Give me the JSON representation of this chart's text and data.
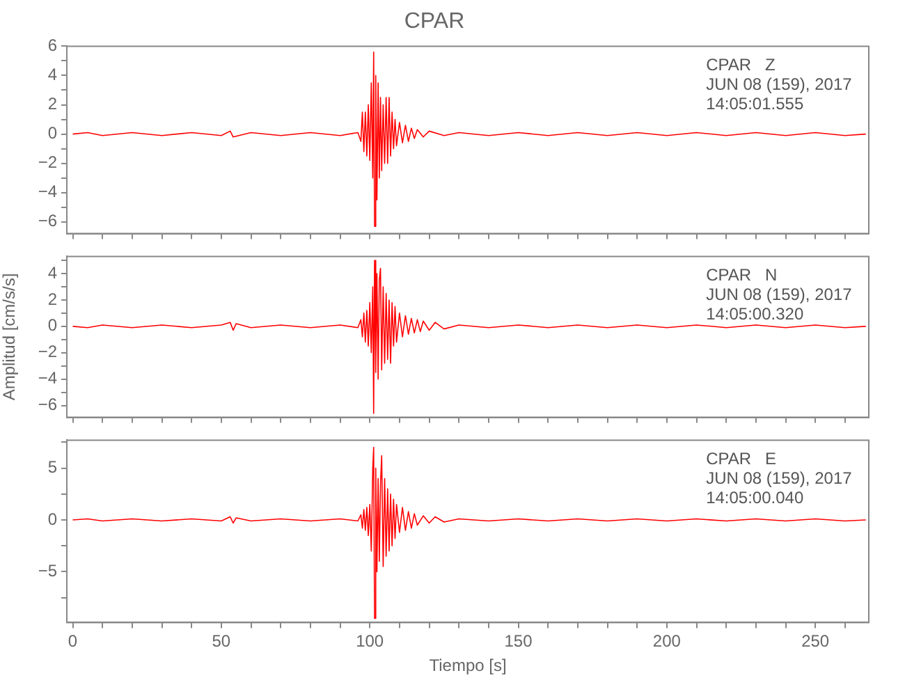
{
  "chart_data": [
    {
      "type": "line",
      "title": "CPAR",
      "annotations": [
        "CPAR   Z",
        "JUN 08 (159), 2017",
        "14:05:01.555"
      ],
      "tick_labels": "y",
      "grid": false,
      "xlim": [
        -2,
        268
      ],
      "ylim": [
        -6.8,
        6
      ],
      "xticks": [
        0,
        10,
        20,
        30,
        40,
        50,
        60,
        70,
        80,
        90,
        100,
        110,
        120,
        130,
        140,
        150,
        160,
        170,
        180,
        190,
        200,
        210,
        220,
        230,
        240,
        250,
        260
      ],
      "yticks": [
        {
          "value": -6,
          "label": "−6"
        },
        {
          "value": -5,
          "label": null
        },
        {
          "value": -4,
          "label": "−4"
        },
        {
          "value": -3,
          "label": null
        },
        {
          "value": -2,
          "label": "−2"
        },
        {
          "value": -1,
          "label": null
        },
        0,
        {
          "value": 1,
          "label": null
        },
        2,
        {
          "value": 3,
          "label": null
        },
        4,
        {
          "value": 5,
          "label": null
        },
        6
      ],
      "series": [
        {
          "color": "#ff0000",
          "x": [
            0,
            5,
            10,
            20,
            30,
            40,
            50,
            53,
            54,
            60,
            70,
            80,
            90,
            96,
            97,
            97.5,
            98,
            98.5,
            99,
            99.5,
            100,
            100.5,
            101,
            101.3,
            101.6,
            102,
            102.4,
            102.8,
            103.2,
            103.6,
            104,
            104.5,
            105,
            105.5,
            106,
            106.5,
            107,
            107.5,
            108,
            108.5,
            109,
            110,
            111,
            112,
            113,
            114,
            115,
            116,
            118,
            120,
            125,
            130,
            140,
            150,
            160,
            170,
            180,
            190,
            200,
            210,
            220,
            230,
            240,
            250,
            260,
            267
          ],
          "values": [
            0,
            0.1,
            -0.1,
            0.1,
            -0.1,
            0.1,
            -0.1,
            0.2,
            -0.2,
            0.1,
            -0.1,
            0.1,
            -0.1,
            0.1,
            -0.5,
            1.5,
            -1.2,
            1.5,
            -1.5,
            2,
            -1.8,
            3.5,
            -3,
            5.6,
            -6.3,
            4,
            -4.5,
            3.5,
            -3,
            2.5,
            -2.5,
            2,
            -2,
            2.5,
            -2,
            2.5,
            -1.5,
            1.5,
            -1,
            1,
            -0.8,
            0.8,
            -0.6,
            0.6,
            -0.5,
            0.4,
            -0.3,
            0.3,
            -0.2,
            0.2,
            -0.1,
            0.1,
            -0.1,
            0.1,
            -0.1,
            0.1,
            -0.1,
            0.1,
            -0.1,
            0.1,
            -0.1,
            0.1,
            -0.1,
            0.1,
            -0.1,
            0
          ]
        }
      ]
    },
    {
      "type": "line",
      "ylabel": "Amplitud [cm/s/s]",
      "annotations": [
        "CPAR   N",
        "JUN 08 (159), 2017",
        "14:05:00.320"
      ],
      "tick_labels": "y",
      "grid": false,
      "xlim": [
        -2,
        268
      ],
      "ylim": [
        -6.9,
        5.3
      ],
      "xticks": [
        0,
        10,
        20,
        30,
        40,
        50,
        60,
        70,
        80,
        90,
        100,
        110,
        120,
        130,
        140,
        150,
        160,
        170,
        180,
        190,
        200,
        210,
        220,
        230,
        240,
        250,
        260
      ],
      "yticks": [
        {
          "value": -6,
          "label": "−6"
        },
        {
          "value": -5,
          "label": null
        },
        {
          "value": -4,
          "label": "−4"
        },
        {
          "value": -3,
          "label": null
        },
        {
          "value": -2,
          "label": "−2"
        },
        {
          "value": -1,
          "label": null
        },
        0,
        {
          "value": 1,
          "label": null
        },
        2,
        {
          "value": 3,
          "label": null
        },
        4,
        {
          "value": 5,
          "label": null
        }
      ],
      "series": [
        {
          "color": "#ff0000",
          "x": [
            0,
            5,
            10,
            20,
            30,
            40,
            50,
            53,
            54,
            55,
            60,
            70,
            80,
            90,
            96,
            97,
            97.5,
            98,
            98.5,
            99,
            99.5,
            100,
            100.5,
            101,
            101.3,
            101.6,
            102,
            102.4,
            102.8,
            103.2,
            103.6,
            104,
            104.5,
            105,
            105.5,
            106,
            106.5,
            107,
            107.5,
            108,
            108.5,
            109,
            110,
            111,
            112,
            113,
            114,
            115,
            116,
            117,
            118,
            120,
            122,
            125,
            130,
            140,
            150,
            160,
            170,
            180,
            190,
            200,
            210,
            220,
            230,
            240,
            250,
            260,
            267
          ],
          "values": [
            0,
            -0.1,
            0.1,
            -0.1,
            0.1,
            -0.1,
            0.1,
            0.3,
            -0.3,
            0.2,
            -0.1,
            0.1,
            -0.1,
            0.1,
            -0.1,
            0.5,
            -0.8,
            1,
            -1.2,
            1.2,
            -1.5,
            1.8,
            -2,
            3,
            -6.6,
            5,
            -3.5,
            4,
            -4,
            3.5,
            4.4,
            -3.3,
            3,
            -2.8,
            2.5,
            -2.5,
            2,
            -2.8,
            1.8,
            -1.5,
            1.5,
            -1.2,
            1,
            -0.8,
            0.8,
            -0.6,
            0.6,
            -0.5,
            0.5,
            -0.4,
            0.4,
            -0.3,
            0.3,
            -0.2,
            0.1,
            -0.1,
            0.1,
            -0.1,
            0.1,
            -0.1,
            0.1,
            -0.1,
            0.1,
            -0.1,
            0.1,
            -0.1,
            0.1,
            -0.1,
            0
          ]
        }
      ]
    },
    {
      "type": "line",
      "xlabel": "Tiempo [s]",
      "annotations": [
        "CPAR   E",
        "JUN 08 (159), 2017",
        "14:05:00.040"
      ],
      "grid": false,
      "xlim": [
        -2,
        268
      ],
      "ylim": [
        -9.9,
        7.7
      ],
      "xticks": [
        0,
        {
          "value": 10,
          "label": null
        },
        {
          "value": 20,
          "label": null
        },
        {
          "value": 30,
          "label": null
        },
        {
          "value": 40,
          "label": null
        },
        50,
        {
          "value": 60,
          "label": null
        },
        {
          "value": 70,
          "label": null
        },
        {
          "value": 80,
          "label": null
        },
        {
          "value": 90,
          "label": null
        },
        100,
        {
          "value": 110,
          "label": null
        },
        {
          "value": 120,
          "label": null
        },
        {
          "value": 130,
          "label": null
        },
        {
          "value": 140,
          "label": null
        },
        150,
        {
          "value": 160,
          "label": null
        },
        {
          "value": 170,
          "label": null
        },
        {
          "value": 180,
          "label": null
        },
        {
          "value": 190,
          "label": null
        },
        200,
        {
          "value": 210,
          "label": null
        },
        {
          "value": 220,
          "label": null
        },
        {
          "value": 230,
          "label": null
        },
        {
          "value": 240,
          "label": null
        },
        250,
        {
          "value": 260,
          "label": null
        }
      ],
      "yticks": [
        {
          "value": -7.5,
          "label": null
        },
        {
          "value": -5,
          "label": "−5"
        },
        {
          "value": -2.5,
          "label": null
        },
        0,
        {
          "value": 2.5,
          "label": null
        },
        5,
        {
          "value": 7.5,
          "label": null
        }
      ],
      "series": [
        {
          "color": "#ff0000",
          "x": [
            0,
            5,
            10,
            20,
            30,
            40,
            50,
            53,
            54,
            55,
            60,
            70,
            80,
            90,
            96,
            97,
            97.5,
            98,
            98.5,
            99,
            99.5,
            100,
            100.5,
            101,
            101.3,
            101.6,
            102,
            102.4,
            102.8,
            103.2,
            103.6,
            104,
            104.5,
            105,
            105.5,
            106,
            106.5,
            107,
            107.5,
            108,
            108.5,
            109,
            110,
            111,
            112,
            113,
            114,
            115,
            116,
            118,
            120,
            122,
            125,
            130,
            140,
            150,
            160,
            170,
            180,
            190,
            200,
            210,
            220,
            230,
            240,
            250,
            260,
            267
          ],
          "values": [
            0,
            0.1,
            -0.1,
            0.1,
            -0.1,
            0.1,
            -0.1,
            0.3,
            -0.3,
            0.2,
            -0.1,
            0.1,
            -0.1,
            0.1,
            -0.1,
            0.5,
            -0.8,
            1,
            -1,
            1.2,
            -1.5,
            1.5,
            -3,
            5,
            7,
            -9.5,
            5,
            -5,
            4,
            -4,
            3.5,
            6.2,
            -4.5,
            4,
            -3.5,
            3,
            -3,
            2.5,
            -2.5,
            2,
            -1.8,
            1.5,
            -1.2,
            1.2,
            -1,
            0.8,
            -0.8,
            0.6,
            -0.5,
            0.4,
            -0.3,
            0.3,
            -0.2,
            0.1,
            -0.1,
            0.1,
            -0.1,
            0.1,
            -0.1,
            0.1,
            -0.1,
            0.1,
            -0.1,
            0.1,
            -0.1,
            0.1,
            -0.1,
            0
          ]
        }
      ]
    }
  ]
}
